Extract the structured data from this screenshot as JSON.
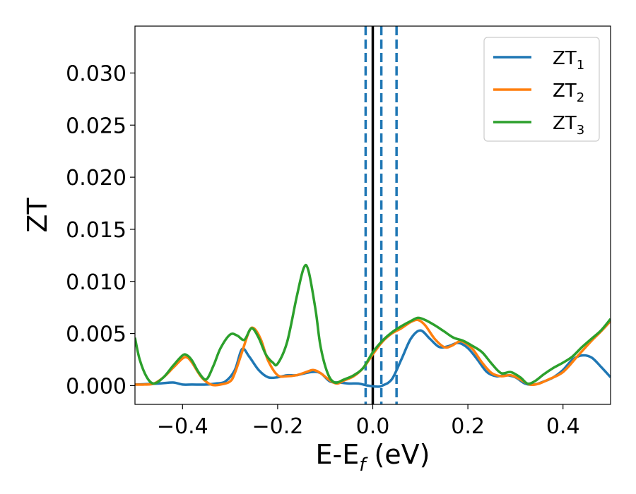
{
  "chart_data": {
    "type": "line",
    "title": "",
    "xlabel": "E-E",
    "xlabel_sub": "f",
    "xlabel_unit": " (eV)",
    "ylabel": "ZT",
    "xlim": [
      -0.5,
      0.5
    ],
    "ylim": [
      -0.0018,
      0.0345
    ],
    "xticks": [
      -0.4,
      -0.2,
      0.0,
      0.2,
      0.4
    ],
    "xtick_labels": [
      "−0.4",
      "−0.2",
      "0.0",
      "0.2",
      "0.4"
    ],
    "yticks": [
      0.0,
      0.005,
      0.01,
      0.015,
      0.02,
      0.025,
      0.03
    ],
    "ytick_labels": [
      "0.000",
      "0.005",
      "0.010",
      "0.015",
      "0.020",
      "0.025",
      "0.030"
    ],
    "grid": false,
    "legend_position": "top-right",
    "vlines": [
      {
        "x": 0.0,
        "style": "solid",
        "color": "#000000"
      },
      {
        "x": -0.015,
        "style": "dashed",
        "color": "#1f77b4"
      },
      {
        "x": 0.018,
        "style": "dashed",
        "color": "#1f77b4"
      },
      {
        "x": 0.05,
        "style": "dashed",
        "color": "#1f77b4"
      }
    ],
    "series": [
      {
        "name": "ZT",
        "name_sub": "1",
        "color": "#1f77b4",
        "points": [
          [
            -0.5,
            0.0001
          ],
          [
            -0.45,
            0.0002
          ],
          [
            -0.42,
            0.0003
          ],
          [
            -0.4,
            0.0001
          ],
          [
            -0.38,
            0.0001
          ],
          [
            -0.35,
            0.0001
          ],
          [
            -0.33,
            0.0002
          ],
          [
            -0.31,
            0.0004
          ],
          [
            -0.29,
            0.0015
          ],
          [
            -0.275,
            0.0035
          ],
          [
            -0.26,
            0.0028
          ],
          [
            -0.24,
            0.0015
          ],
          [
            -0.22,
            0.0008
          ],
          [
            -0.2,
            0.0008
          ],
          [
            -0.18,
            0.001
          ],
          [
            -0.16,
            0.001
          ],
          [
            -0.13,
            0.0013
          ],
          [
            -0.11,
            0.0012
          ],
          [
            -0.09,
            0.0004
          ],
          [
            -0.07,
            0.0003
          ],
          [
            -0.05,
            0.0002
          ],
          [
            -0.03,
            0.0002
          ],
          [
            -0.01,
            0.0
          ],
          [
            0.01,
            -0.0001
          ],
          [
            0.02,
            0.0
          ],
          [
            0.04,
            0.0006
          ],
          [
            0.06,
            0.0025
          ],
          [
            0.08,
            0.0045
          ],
          [
            0.1,
            0.0053
          ],
          [
            0.12,
            0.0045
          ],
          [
            0.14,
            0.0037
          ],
          [
            0.16,
            0.0038
          ],
          [
            0.18,
            0.0041
          ],
          [
            0.2,
            0.0036
          ],
          [
            0.22,
            0.0025
          ],
          [
            0.24,
            0.0013
          ],
          [
            0.26,
            0.0009
          ],
          [
            0.28,
            0.001
          ],
          [
            0.3,
            0.0008
          ],
          [
            0.32,
            0.0002
          ],
          [
            0.34,
            0.0001
          ],
          [
            0.36,
            0.0004
          ],
          [
            0.38,
            0.0008
          ],
          [
            0.4,
            0.0015
          ],
          [
            0.42,
            0.0025
          ],
          [
            0.44,
            0.0029
          ],
          [
            0.46,
            0.0027
          ],
          [
            0.48,
            0.0018
          ],
          [
            0.5,
            0.0008
          ]
        ]
      },
      {
        "name": "ZT",
        "name_sub": "2",
        "color": "#ff7f0e",
        "points": [
          [
            -0.5,
            0.0001
          ],
          [
            -0.48,
            0.0001
          ],
          [
            -0.46,
            0.0002
          ],
          [
            -0.44,
            0.0008
          ],
          [
            -0.42,
            0.0017
          ],
          [
            -0.4,
            0.0026
          ],
          [
            -0.39,
            0.0027
          ],
          [
            -0.38,
            0.0022
          ],
          [
            -0.36,
            0.0008
          ],
          [
            -0.34,
            0.0001
          ],
          [
            -0.32,
            0.0001
          ],
          [
            -0.3,
            0.0004
          ],
          [
            -0.29,
            0.0012
          ],
          [
            -0.275,
            0.0032
          ],
          [
            -0.26,
            0.0052
          ],
          [
            -0.25,
            0.0055
          ],
          [
            -0.235,
            0.0044
          ],
          [
            -0.22,
            0.0024
          ],
          [
            -0.2,
            0.001
          ],
          [
            -0.18,
            0.0009
          ],
          [
            -0.16,
            0.001
          ],
          [
            -0.14,
            0.0013
          ],
          [
            -0.125,
            0.0015
          ],
          [
            -0.11,
            0.0012
          ],
          [
            -0.09,
            0.0005
          ],
          [
            -0.075,
            0.0002
          ],
          [
            -0.06,
            0.0005
          ],
          [
            -0.04,
            0.0009
          ],
          [
            -0.02,
            0.0017
          ],
          [
            0.0,
            0.003
          ],
          [
            0.02,
            0.0042
          ],
          [
            0.04,
            0.005
          ],
          [
            0.06,
            0.0055
          ],
          [
            0.08,
            0.0061
          ],
          [
            0.095,
            0.0063
          ],
          [
            0.11,
            0.0058
          ],
          [
            0.13,
            0.0045
          ],
          [
            0.15,
            0.0037
          ],
          [
            0.165,
            0.0038
          ],
          [
            0.18,
            0.0042
          ],
          [
            0.19,
            0.0042
          ],
          [
            0.21,
            0.0035
          ],
          [
            0.23,
            0.0022
          ],
          [
            0.25,
            0.0012
          ],
          [
            0.27,
            0.0009
          ],
          [
            0.29,
            0.001
          ],
          [
            0.31,
            0.0006
          ],
          [
            0.33,
            0.0001
          ],
          [
            0.35,
            0.0002
          ],
          [
            0.37,
            0.0006
          ],
          [
            0.4,
            0.0013
          ],
          [
            0.43,
            0.0028
          ],
          [
            0.46,
            0.0043
          ],
          [
            0.48,
            0.0052
          ],
          [
            0.5,
            0.0062
          ]
        ]
      },
      {
        "name": "ZT",
        "name_sub": "3",
        "color": "#2ca02c",
        "points": [
          [
            -0.5,
            0.0046
          ],
          [
            -0.49,
            0.0025
          ],
          [
            -0.475,
            0.0008
          ],
          [
            -0.46,
            0.0002
          ],
          [
            -0.44,
            0.0008
          ],
          [
            -0.42,
            0.0019
          ],
          [
            -0.4,
            0.0029
          ],
          [
            -0.39,
            0.0029
          ],
          [
            -0.38,
            0.0024
          ],
          [
            -0.365,
            0.0012
          ],
          [
            -0.35,
            0.0006
          ],
          [
            -0.335,
            0.0019
          ],
          [
            -0.32,
            0.0036
          ],
          [
            -0.3,
            0.0049
          ],
          [
            -0.285,
            0.0048
          ],
          [
            -0.27,
            0.0044
          ],
          [
            -0.255,
            0.0055
          ],
          [
            -0.24,
            0.0046
          ],
          [
            -0.225,
            0.003
          ],
          [
            -0.21,
            0.0022
          ],
          [
            -0.2,
            0.0021
          ],
          [
            -0.18,
            0.0042
          ],
          [
            -0.16,
            0.0085
          ],
          [
            -0.145,
            0.0113
          ],
          [
            -0.135,
            0.011
          ],
          [
            -0.12,
            0.0072
          ],
          [
            -0.11,
            0.0038
          ],
          [
            -0.095,
            0.0012
          ],
          [
            -0.08,
            0.0003
          ],
          [
            -0.06,
            0.0006
          ],
          [
            -0.04,
            0.001
          ],
          [
            -0.02,
            0.0017
          ],
          [
            0.0,
            0.0032
          ],
          [
            0.02,
            0.0043
          ],
          [
            0.04,
            0.0051
          ],
          [
            0.06,
            0.0057
          ],
          [
            0.08,
            0.0062
          ],
          [
            0.095,
            0.0065
          ],
          [
            0.11,
            0.0063
          ],
          [
            0.13,
            0.0058
          ],
          [
            0.15,
            0.0052
          ],
          [
            0.17,
            0.0046
          ],
          [
            0.19,
            0.0043
          ],
          [
            0.21,
            0.0038
          ],
          [
            0.23,
            0.0032
          ],
          [
            0.25,
            0.0021
          ],
          [
            0.27,
            0.0012
          ],
          [
            0.29,
            0.0013
          ],
          [
            0.31,
            0.0008
          ],
          [
            0.325,
            0.0002
          ],
          [
            0.34,
            0.0004
          ],
          [
            0.36,
            0.0011
          ],
          [
            0.38,
            0.0017
          ],
          [
            0.4,
            0.0022
          ],
          [
            0.42,
            0.0028
          ],
          [
            0.44,
            0.0037
          ],
          [
            0.46,
            0.0045
          ],
          [
            0.48,
            0.0053
          ],
          [
            0.5,
            0.0064
          ]
        ]
      }
    ]
  }
}
